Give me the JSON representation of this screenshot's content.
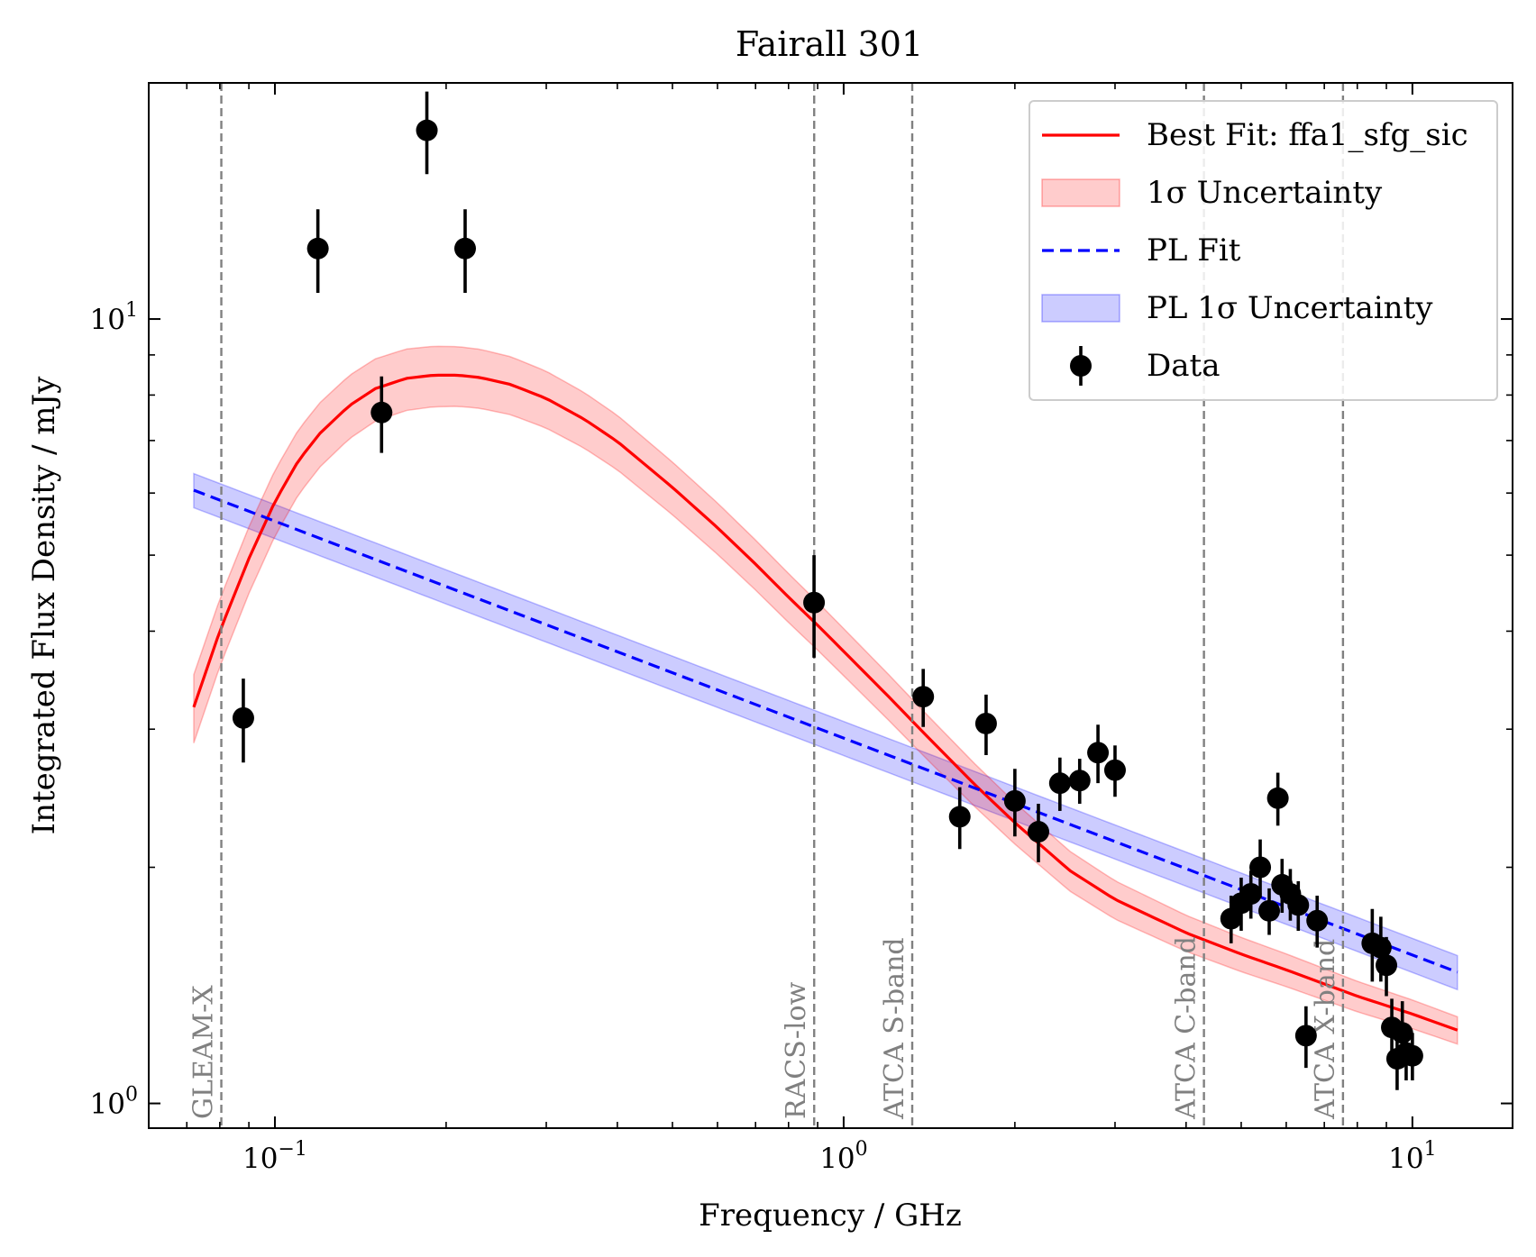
{
  "chart_data": {
    "type": "scatter",
    "title": "Fairall 301",
    "xlabel": "Frequency / GHz",
    "ylabel": "Integrated Flux Density / mJy",
    "xscale": "log",
    "yscale": "log",
    "xlim": [
      0.06,
      15
    ],
    "ylim": [
      0.93,
      20
    ],
    "x_ticks": [
      {
        "value": 0.1,
        "base": "10",
        "exp": "−1"
      },
      {
        "value": 1,
        "base": "10",
        "exp": "0"
      },
      {
        "value": 10,
        "base": "10",
        "exp": "1"
      }
    ],
    "y_ticks": [
      {
        "value": 1,
        "base": "10",
        "exp": "0"
      },
      {
        "value": 10,
        "base": "10",
        "exp": "1"
      }
    ],
    "vertical_lines": [
      {
        "freq": 0.0805,
        "label": "GLEAM-X"
      },
      {
        "freq": 0.8875,
        "label": "RACS-low"
      },
      {
        "freq": 1.32,
        "label": "ATCA S-band"
      },
      {
        "freq": 4.3,
        "label": "ATCA C-band"
      },
      {
        "freq": 7.55,
        "label": "ATCA X-band"
      }
    ],
    "legend": {
      "position": "top-right",
      "entries": [
        {
          "label": "Best Fit: ffa1_sfg_sic",
          "kind": "line",
          "color": "#ff0000"
        },
        {
          "label": "1σ Uncertainty",
          "kind": "band",
          "color": "#ff0000"
        },
        {
          "label": "PL Fit",
          "kind": "dashed",
          "color": "#0000ff"
        },
        {
          "label": "PL 1σ Uncertainty",
          "kind": "band",
          "color": "#0000ff"
        },
        {
          "label": "Data",
          "kind": "errorbar",
          "color": "#000000"
        }
      ]
    },
    "series": [
      {
        "name": "Best Fit: ffa1_sfg_sic",
        "color": "#ff0000",
        "x": [
          0.072,
          0.08,
          0.09,
          0.1,
          0.11,
          0.12,
          0.135,
          0.15,
          0.17,
          0.19,
          0.21,
          0.23,
          0.26,
          0.3,
          0.35,
          0.4,
          0.5,
          0.6,
          0.7,
          0.8,
          0.9,
          1.0,
          1.2,
          1.4,
          1.7,
          2.0,
          2.5,
          3.0,
          4.0,
          5.0,
          6.0,
          7.0,
          8.0,
          10.0,
          12.0
        ],
        "y": [
          3.2,
          4.0,
          4.95,
          5.85,
          6.6,
          7.15,
          7.75,
          8.15,
          8.4,
          8.48,
          8.48,
          8.42,
          8.25,
          7.92,
          7.45,
          6.98,
          6.1,
          5.42,
          4.87,
          4.42,
          4.07,
          3.77,
          3.3,
          2.94,
          2.55,
          2.28,
          1.98,
          1.82,
          1.65,
          1.55,
          1.48,
          1.42,
          1.37,
          1.3,
          1.24
        ]
      },
      {
        "name": "PL Fit",
        "color": "#0000ff",
        "x": [
          0.072,
          12.0
        ],
        "y": [
          6.05,
          1.47
        ]
      }
    ],
    "bands": [
      {
        "name": "1σ Uncertainty",
        "series": "Best Fit: ffa1_sfg_sic",
        "rel_width_low_freq": 0.1,
        "rel_width_high_freq": 0.04
      },
      {
        "name": "PL 1σ Uncertainty",
        "series": "PL Fit",
        "rel_width": 0.05
      }
    ],
    "data": {
      "name": "Data",
      "points": [
        {
          "x": 0.088,
          "y": 3.1,
          "err": 0.38
        },
        {
          "x": 0.119,
          "y": 12.3,
          "err": 1.5
        },
        {
          "x": 0.154,
          "y": 7.6,
          "err": 0.85
        },
        {
          "x": 0.185,
          "y": 17.4,
          "err": 2.1
        },
        {
          "x": 0.216,
          "y": 12.3,
          "err": 1.5
        },
        {
          "x": 0.887,
          "y": 4.35,
          "err": 0.65
        },
        {
          "x": 1.38,
          "y": 3.3,
          "err": 0.28
        },
        {
          "x": 1.6,
          "y": 2.32,
          "err": 0.21
        },
        {
          "x": 1.78,
          "y": 3.05,
          "err": 0.27
        },
        {
          "x": 2.0,
          "y": 2.43,
          "err": 0.24
        },
        {
          "x": 2.2,
          "y": 2.22,
          "err": 0.19
        },
        {
          "x": 2.4,
          "y": 2.56,
          "err": 0.2
        },
        {
          "x": 2.6,
          "y": 2.58,
          "err": 0.17
        },
        {
          "x": 2.8,
          "y": 2.8,
          "err": 0.24
        },
        {
          "x": 3.0,
          "y": 2.66,
          "err": 0.2
        },
        {
          "x": 4.8,
          "y": 1.72,
          "err": 0.12
        },
        {
          "x": 5.0,
          "y": 1.8,
          "err": 0.14
        },
        {
          "x": 5.2,
          "y": 1.85,
          "err": 0.13
        },
        {
          "x": 5.4,
          "y": 2.0,
          "err": 0.17
        },
        {
          "x": 5.6,
          "y": 1.76,
          "err": 0.12
        },
        {
          "x": 5.8,
          "y": 2.45,
          "err": 0.19
        },
        {
          "x": 5.9,
          "y": 1.9,
          "err": 0.15
        },
        {
          "x": 6.1,
          "y": 1.85,
          "err": 0.14
        },
        {
          "x": 6.3,
          "y": 1.79,
          "err": 0.13
        },
        {
          "x": 6.5,
          "y": 1.22,
          "err": 0.11
        },
        {
          "x": 6.8,
          "y": 1.71,
          "err": 0.13
        },
        {
          "x": 8.5,
          "y": 1.6,
          "err": 0.17
        },
        {
          "x": 8.8,
          "y": 1.58,
          "err": 0.15
        },
        {
          "x": 9.0,
          "y": 1.5,
          "err": 0.13
        },
        {
          "x": 9.2,
          "y": 1.25,
          "err": 0.11
        },
        {
          "x": 9.4,
          "y": 1.14,
          "err": 0.1
        },
        {
          "x": 9.6,
          "y": 1.23,
          "err": 0.12
        },
        {
          "x": 9.75,
          "y": 1.16,
          "err": 0.09
        },
        {
          "x": 10.0,
          "y": 1.15,
          "err": 0.08
        }
      ]
    }
  }
}
